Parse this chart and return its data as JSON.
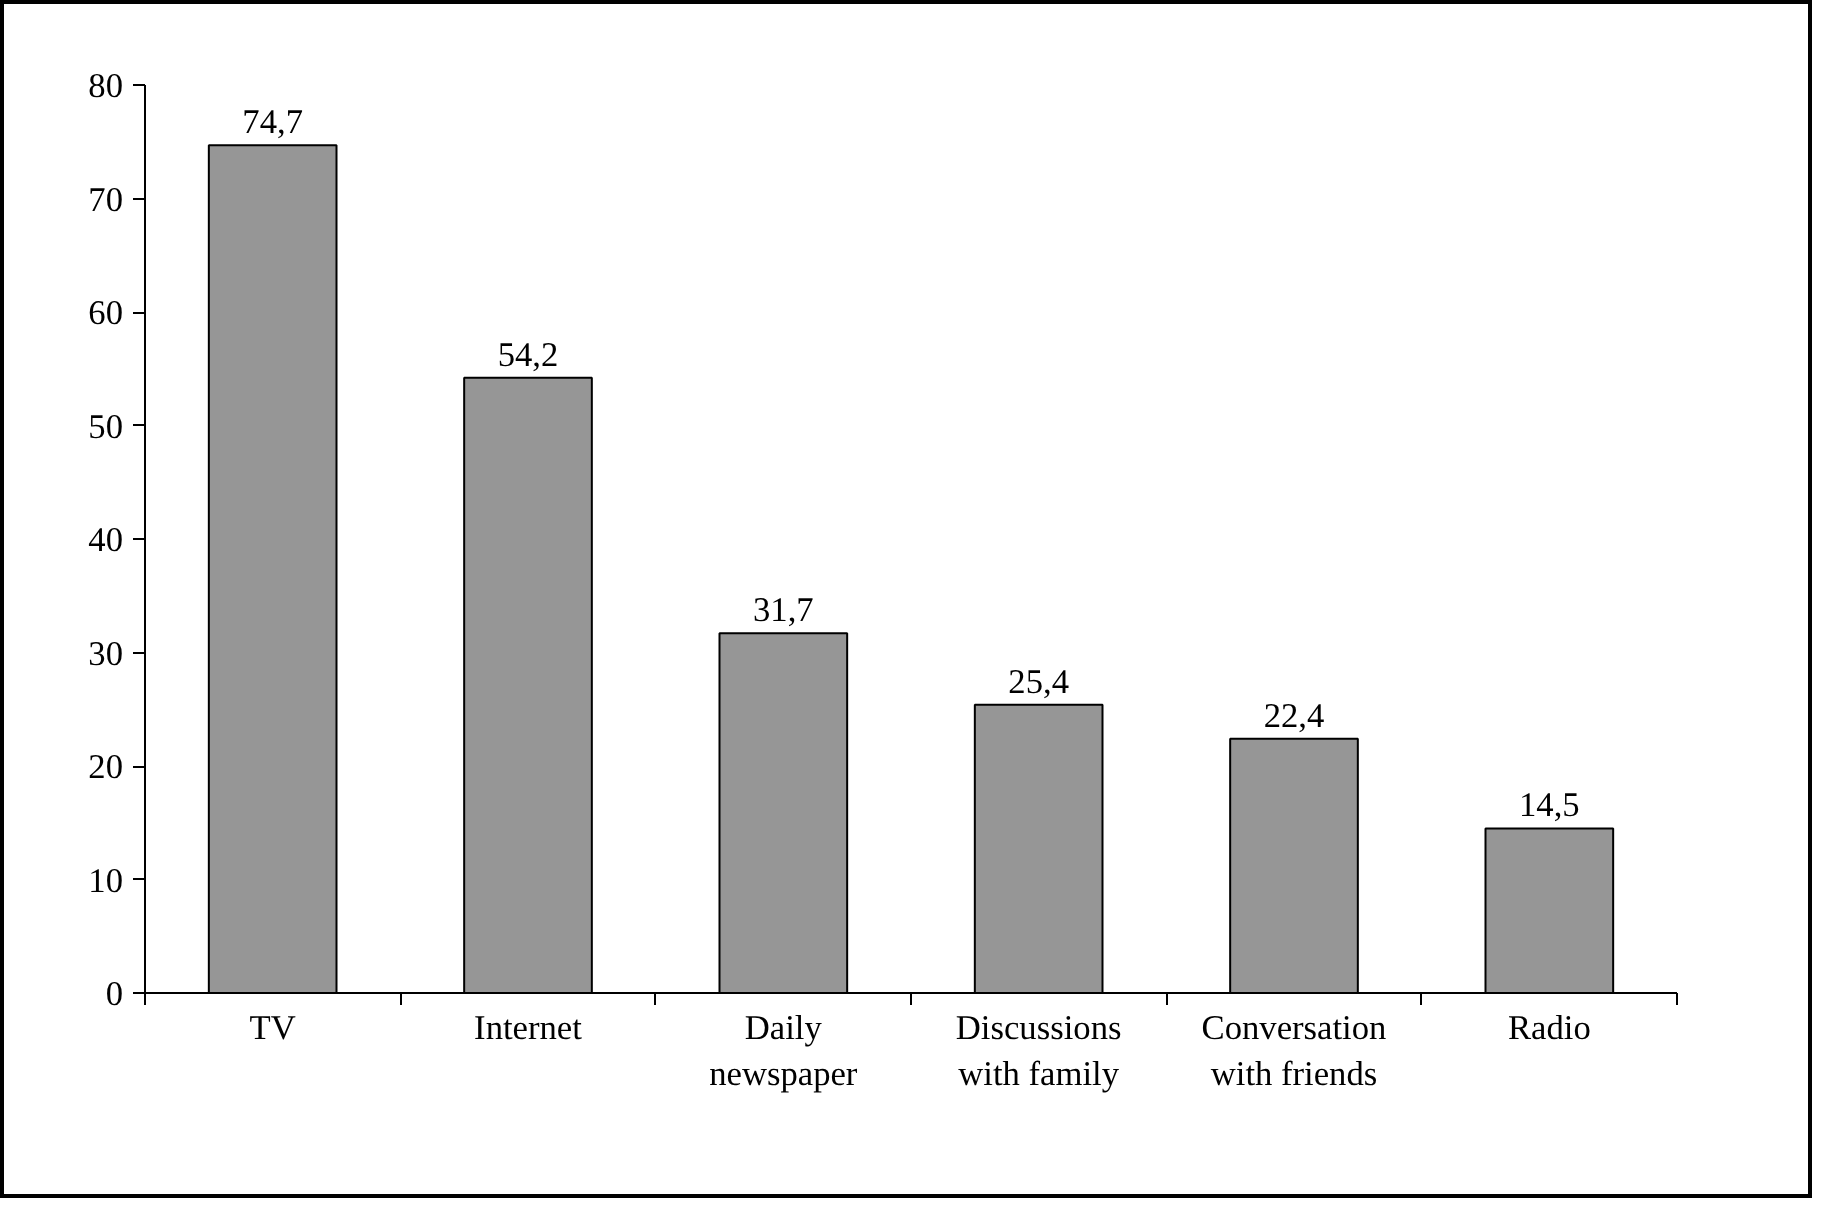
{
  "chart_data": {
    "type": "bar",
    "categories": [
      "TV",
      "Internet",
      "Daily newspaper",
      "Discussions with family",
      "Conversation with friends",
      "Radio"
    ],
    "values": [
      74.7,
      54.2,
      31.7,
      25.4,
      22.4,
      14.5
    ],
    "value_labels": [
      "74,7",
      "54,2",
      "31,7",
      "25,4",
      "22,4",
      "14,5"
    ],
    "color": "#969696",
    "ylim": [
      0,
      80
    ],
    "yticks": [
      0,
      10,
      20,
      30,
      40,
      50,
      60,
      70,
      80
    ],
    "grid": false
  }
}
